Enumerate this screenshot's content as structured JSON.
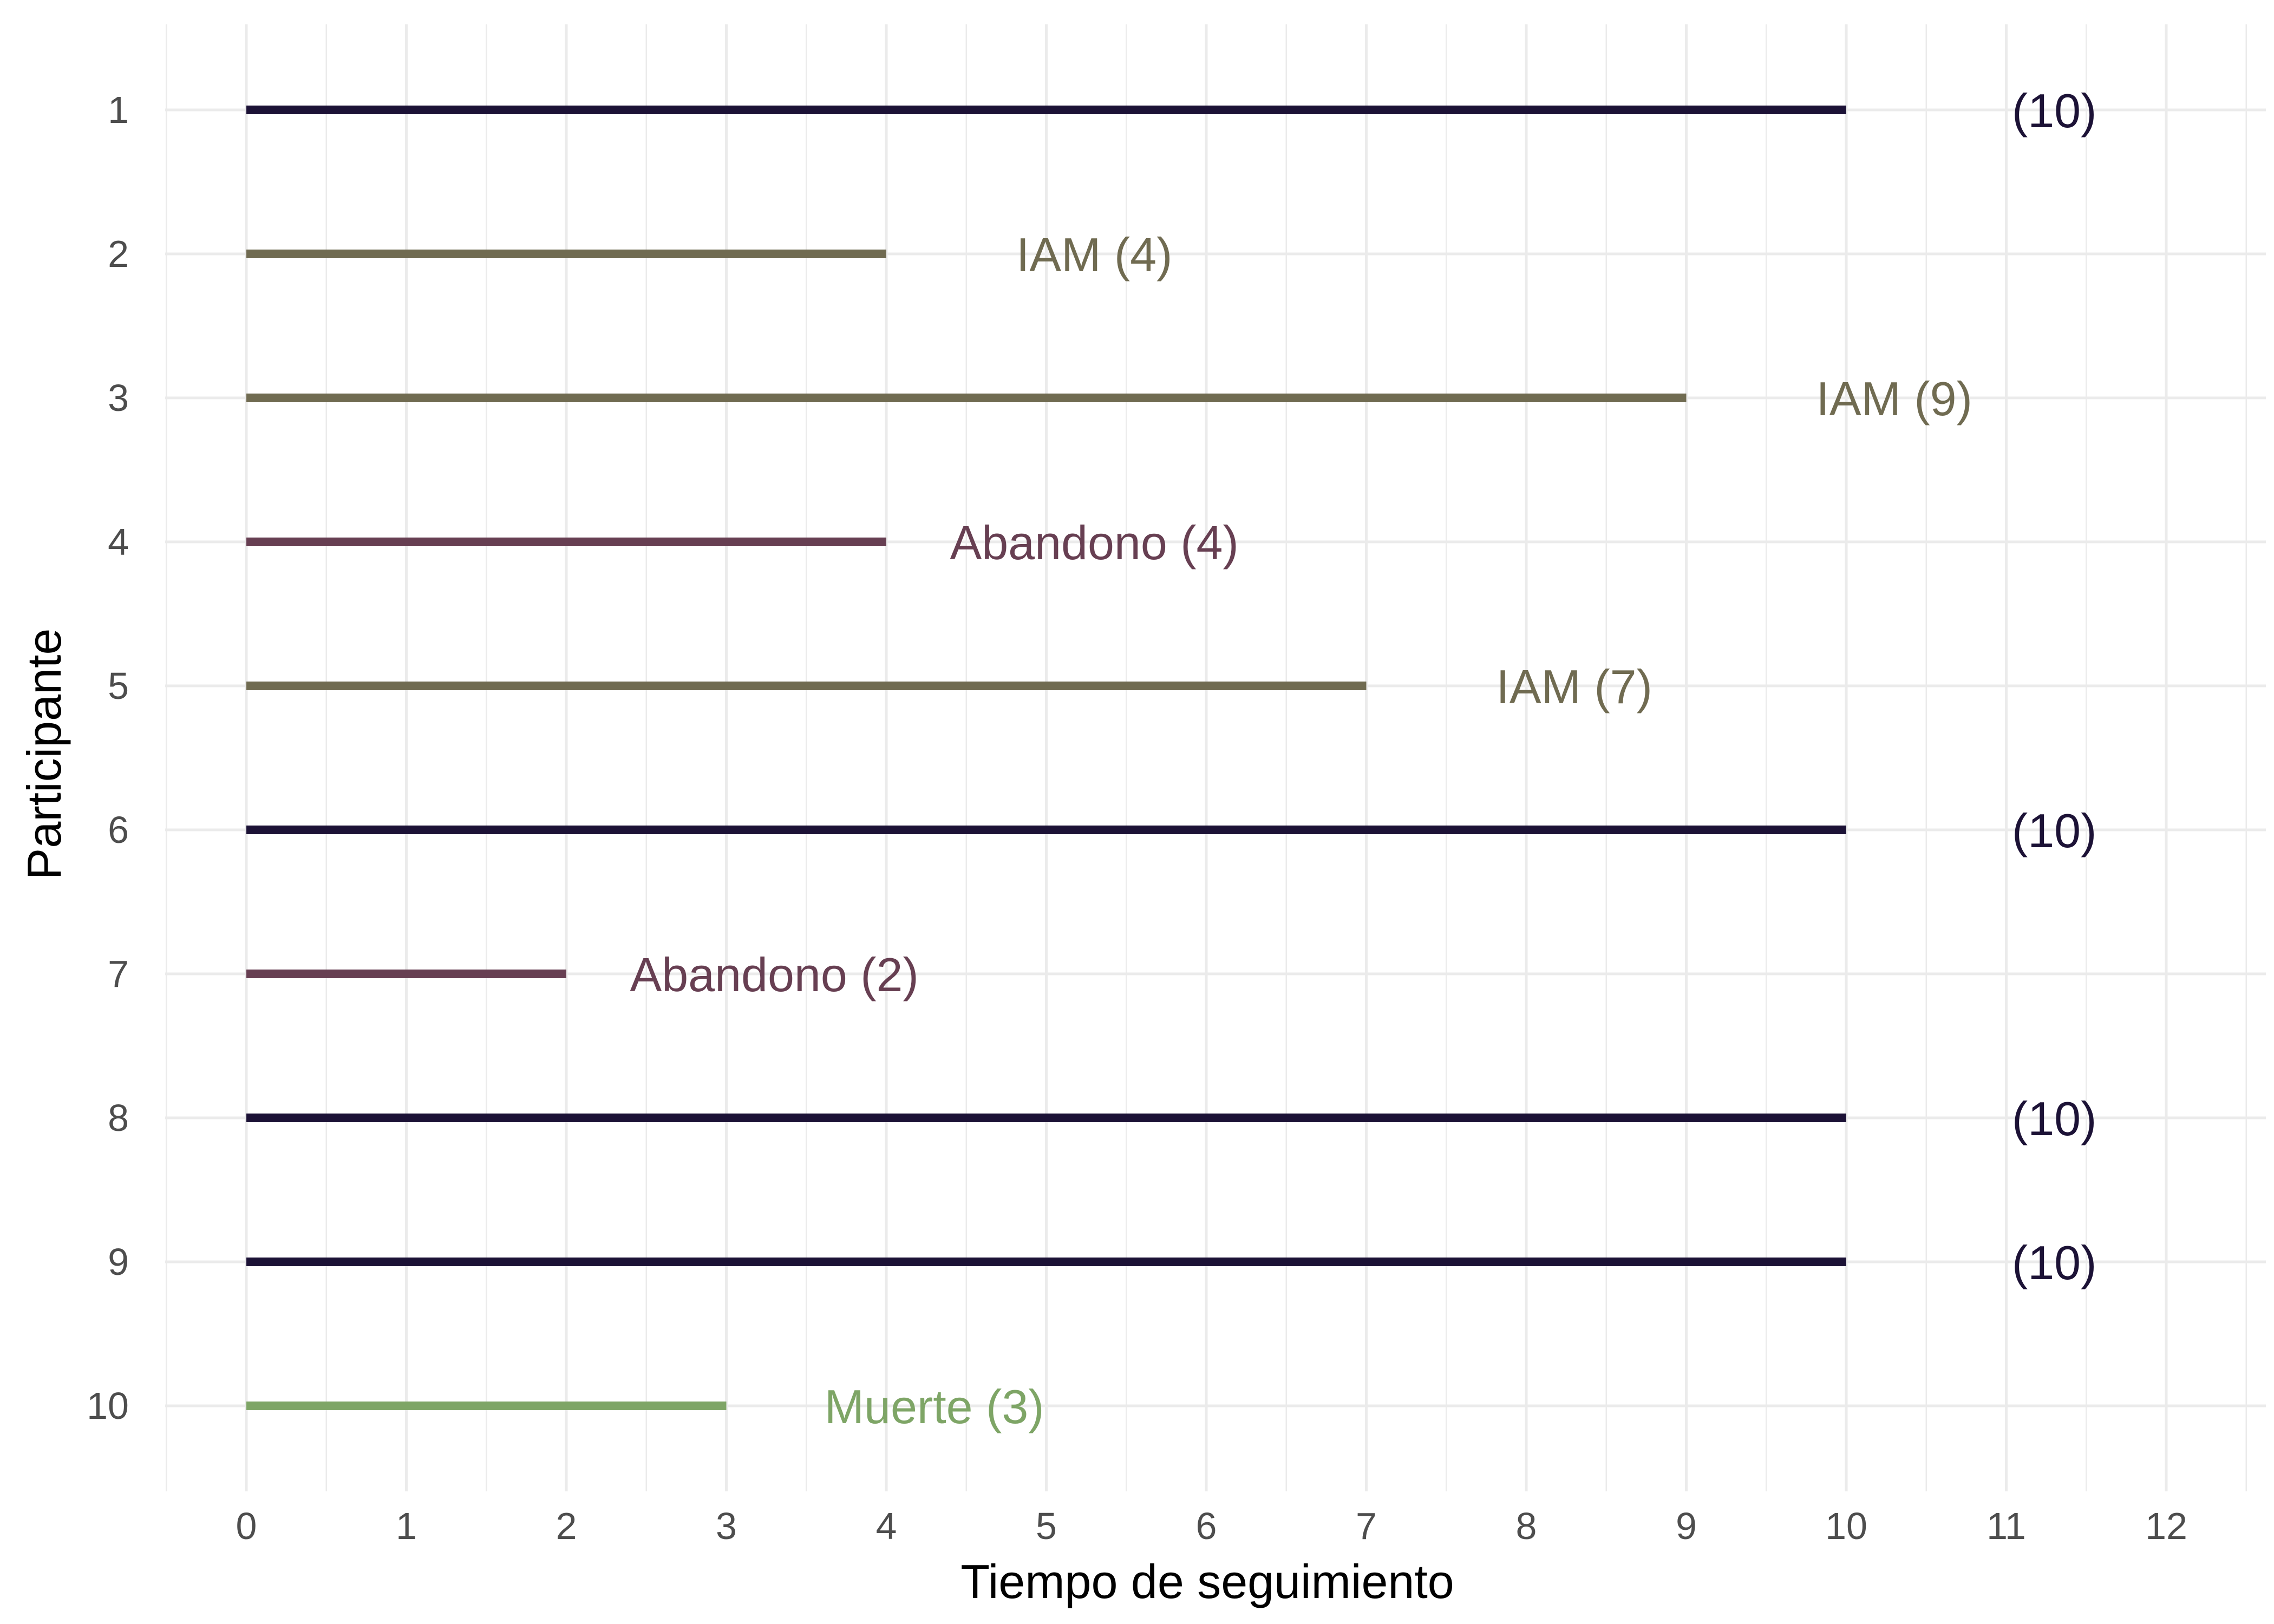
{
  "chart_data": {
    "type": "bar",
    "orientation": "horizontal-segments",
    "xlabel": "Tiempo de seguimiento",
    "ylabel": "Participante",
    "xlim": [
      -0.5,
      12.5
    ],
    "x_ticks": [
      0,
      1,
      2,
      3,
      4,
      5,
      6,
      7,
      8,
      9,
      10,
      11,
      12
    ],
    "x_tick_labels": [
      "0",
      "1",
      "2",
      "3",
      "4",
      "5",
      "6",
      "7",
      "8",
      "9",
      "10",
      "11",
      "12"
    ],
    "categories": [
      "1",
      "2",
      "3",
      "4",
      "5",
      "6",
      "7",
      "8",
      "9",
      "10"
    ],
    "grid": true,
    "legend": "none",
    "outcome_colors": {
      "censored": "#1c1236",
      "IAM": "#706b51",
      "Abandono": "#673f52",
      "Muerte": "#7ea566"
    },
    "segments": [
      {
        "participant": "1",
        "start": 0,
        "end": 10,
        "outcome": "censored",
        "label": "(10)"
      },
      {
        "participant": "2",
        "start": 0,
        "end": 4,
        "outcome": "IAM",
        "label": "IAM (4)"
      },
      {
        "participant": "3",
        "start": 0,
        "end": 9,
        "outcome": "IAM",
        "label": "IAM (9)"
      },
      {
        "participant": "4",
        "start": 0,
        "end": 4,
        "outcome": "Abandono",
        "label": "Abandono (4)"
      },
      {
        "participant": "5",
        "start": 0,
        "end": 7,
        "outcome": "IAM",
        "label": "IAM (7)"
      },
      {
        "participant": "6",
        "start": 0,
        "end": 10,
        "outcome": "censored",
        "label": "(10)"
      },
      {
        "participant": "7",
        "start": 0,
        "end": 2,
        "outcome": "Abandono",
        "label": "Abandono (2)"
      },
      {
        "participant": "8",
        "start": 0,
        "end": 10,
        "outcome": "censored",
        "label": "(10)"
      },
      {
        "participant": "9",
        "start": 0,
        "end": 10,
        "outcome": "censored",
        "label": "(10)"
      },
      {
        "participant": "10",
        "start": 0,
        "end": 3,
        "outcome": "Muerte",
        "label": "Muerte (3)"
      }
    ]
  }
}
